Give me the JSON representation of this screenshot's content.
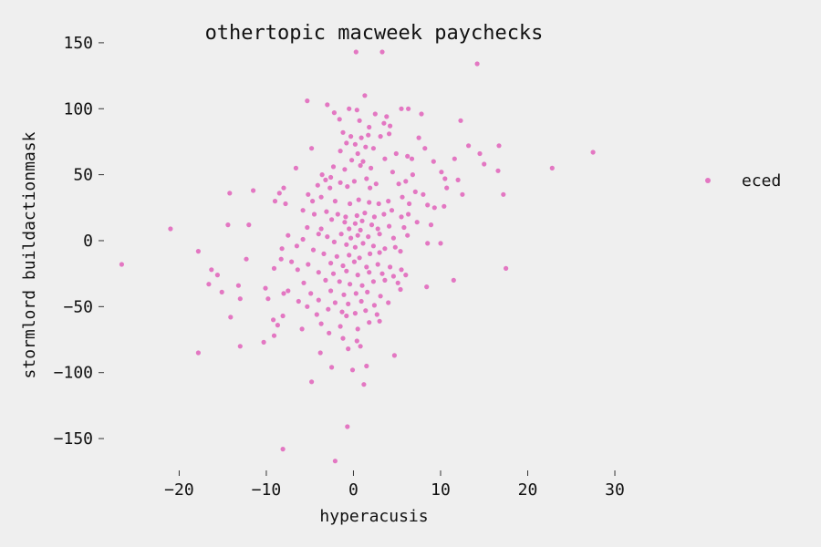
{
  "chart_data": {
    "type": "scatter",
    "title": "othertopic macweek paychecks",
    "xlabel": "hyperacusis",
    "ylabel": "stormlord buildactionmask",
    "xlim": [
      -28,
      39
    ],
    "ylim": [
      -170,
      152
    ],
    "xticks": [
      -20,
      -10,
      0,
      10,
      20,
      30
    ],
    "yticks": [
      -150,
      -100,
      -50,
      0,
      50,
      100,
      150
    ],
    "xtick_labels": [
      "−20",
      "−10",
      "0",
      "10",
      "20",
      "30"
    ],
    "ytick_labels": [
      "−150",
      "−100",
      "−50",
      "0",
      "50",
      "100",
      "150"
    ],
    "grid": false,
    "legend_position": "right",
    "series": [
      {
        "name": "eced",
        "color": "#e377c2",
        "points": [
          [
            0.3,
            143
          ],
          [
            3.3,
            143
          ],
          [
            14.2,
            134
          ],
          [
            1.3,
            110
          ],
          [
            -5.3,
            106
          ],
          [
            -0.5,
            100
          ],
          [
            0.4,
            99
          ],
          [
            5.5,
            100
          ],
          [
            6.3,
            100
          ],
          [
            7.8,
            96
          ],
          [
            -3,
            103
          ],
          [
            -2.2,
            97
          ],
          [
            2.5,
            96
          ],
          [
            3.8,
            94
          ],
          [
            12.3,
            91
          ],
          [
            -1.6,
            92
          ],
          [
            0.7,
            91
          ],
          [
            3.5,
            89
          ],
          [
            4.2,
            87
          ],
          [
            1.8,
            86
          ],
          [
            -1.2,
            82
          ],
          [
            -0.3,
            79
          ],
          [
            0.9,
            78
          ],
          [
            1.7,
            80
          ],
          [
            3.1,
            79
          ],
          [
            4.1,
            81
          ],
          [
            -0.8,
            74
          ],
          [
            0.2,
            73
          ],
          [
            1.4,
            71
          ],
          [
            2.3,
            70
          ],
          [
            7.5,
            78
          ],
          [
            8.2,
            70
          ],
          [
            13.2,
            72
          ],
          [
            16.7,
            72
          ],
          [
            14.5,
            66
          ],
          [
            -4.8,
            70
          ],
          [
            6.2,
            64
          ],
          [
            6.7,
            62
          ],
          [
            -1.5,
            68
          ],
          [
            0.5,
            66
          ],
          [
            -0.2,
            61
          ],
          [
            1.1,
            60
          ],
          [
            3.6,
            62
          ],
          [
            4.9,
            66
          ],
          [
            11.6,
            62
          ],
          [
            15,
            58
          ],
          [
            22.8,
            55
          ],
          [
            27.5,
            67
          ],
          [
            9.2,
            60
          ],
          [
            -2.3,
            56
          ],
          [
            -1,
            54
          ],
          [
            0.8,
            57
          ],
          [
            2,
            55
          ],
          [
            -6.6,
            55
          ],
          [
            -3.6,
            50
          ],
          [
            10.1,
            52
          ],
          [
            10.5,
            47
          ],
          [
            12,
            46
          ],
          [
            16.6,
            53
          ],
          [
            6.8,
            50
          ],
          [
            4.5,
            52
          ],
          [
            -3.2,
            46
          ],
          [
            -2.6,
            48
          ],
          [
            -1.5,
            44
          ],
          [
            0.1,
            45
          ],
          [
            1.5,
            47
          ],
          [
            2.6,
            43
          ],
          [
            -4.1,
            42
          ],
          [
            -2.7,
            40
          ],
          [
            -0.7,
            41
          ],
          [
            1.9,
            40
          ],
          [
            -8,
            40
          ],
          [
            -11.5,
            38
          ],
          [
            -14.2,
            36
          ],
          [
            -8.5,
            36
          ],
          [
            7.1,
            37
          ],
          [
            8,
            35
          ],
          [
            12.5,
            35
          ],
          [
            17.2,
            35
          ],
          [
            10.7,
            40
          ],
          [
            6,
            45
          ],
          [
            5.2,
            43
          ],
          [
            -5.2,
            35
          ],
          [
            -4.7,
            30
          ],
          [
            -3.7,
            33
          ],
          [
            -2.1,
            30
          ],
          [
            -0.4,
            28
          ],
          [
            0.6,
            31
          ],
          [
            1.8,
            29
          ],
          [
            2.9,
            28
          ],
          [
            4,
            30
          ],
          [
            5.6,
            33
          ],
          [
            6.4,
            28
          ],
          [
            8.5,
            27
          ],
          [
            9.3,
            25
          ],
          [
            10.4,
            26
          ],
          [
            -7.8,
            28
          ],
          [
            -9,
            30
          ],
          [
            -5.8,
            23
          ],
          [
            -4.5,
            20
          ],
          [
            -3.1,
            22
          ],
          [
            -1.8,
            20
          ],
          [
            -0.9,
            18
          ],
          [
            0.4,
            19
          ],
          [
            1.3,
            21
          ],
          [
            2.4,
            18
          ],
          [
            3.5,
            20
          ],
          [
            4.4,
            23
          ],
          [
            5.5,
            18
          ],
          [
            6.3,
            20
          ],
          [
            -2.5,
            16
          ],
          [
            -1,
            14
          ],
          [
            0.2,
            13
          ],
          [
            1,
            15
          ],
          [
            2.1,
            12
          ],
          [
            -12,
            12
          ],
          [
            -14.4,
            12
          ],
          [
            -21,
            9
          ],
          [
            -5.3,
            10
          ],
          [
            -3.7,
            9
          ],
          [
            -0.5,
            9
          ],
          [
            0.8,
            8
          ],
          [
            2.8,
            9
          ],
          [
            4.1,
            11
          ],
          [
            5.8,
            10
          ],
          [
            7.3,
            14
          ],
          [
            8.9,
            12
          ],
          [
            -4,
            5
          ],
          [
            -3,
            3
          ],
          [
            -1.4,
            5
          ],
          [
            -0.3,
            2
          ],
          [
            0.5,
            4
          ],
          [
            1.7,
            3
          ],
          [
            3,
            5
          ],
          [
            4.6,
            2
          ],
          [
            6.2,
            4
          ],
          [
            -7.5,
            4
          ],
          [
            -5.8,
            1
          ],
          [
            10,
            -2
          ],
          [
            8.5,
            -2
          ],
          [
            -2.2,
            -1
          ],
          [
            -0.8,
            -3
          ],
          [
            0.2,
            -5
          ],
          [
            1.1,
            -2
          ],
          [
            2.3,
            -4
          ],
          [
            3.6,
            -6
          ],
          [
            -6.5,
            -4
          ],
          [
            -4.6,
            -7
          ],
          [
            -8.2,
            -6
          ],
          [
            -17.8,
            -8
          ],
          [
            4.8,
            -5
          ],
          [
            5.4,
            -8
          ],
          [
            -3.4,
            -10
          ],
          [
            -1.9,
            -12
          ],
          [
            -0.5,
            -11
          ],
          [
            0.7,
            -13
          ],
          [
            1.9,
            -10
          ],
          [
            3,
            -9
          ],
          [
            -26.6,
            -18
          ],
          [
            -8.3,
            -14
          ],
          [
            -7.1,
            -16
          ],
          [
            -12.3,
            -14
          ],
          [
            -5.2,
            -18
          ],
          [
            -2.6,
            -17
          ],
          [
            -1.2,
            -19
          ],
          [
            0.1,
            -16
          ],
          [
            1.5,
            -20
          ],
          [
            2.8,
            -18
          ],
          [
            4.2,
            -20
          ],
          [
            5.5,
            -22
          ],
          [
            17.5,
            -21
          ],
          [
            -16.3,
            -22
          ],
          [
            -15.6,
            -26
          ],
          [
            -9.1,
            -21
          ],
          [
            -6.4,
            -22
          ],
          [
            -4,
            -24
          ],
          [
            -2.3,
            -25
          ],
          [
            -0.8,
            -23
          ],
          [
            0.5,
            -26
          ],
          [
            1.8,
            -24
          ],
          [
            3.3,
            -25
          ],
          [
            4.6,
            -27
          ],
          [
            6,
            -26
          ],
          [
            -16.6,
            -33
          ],
          [
            -15.1,
            -39
          ],
          [
            -13.2,
            -34
          ],
          [
            -5.7,
            -32
          ],
          [
            -3.2,
            -30
          ],
          [
            -1.6,
            -31
          ],
          [
            -0.4,
            -33
          ],
          [
            1,
            -34
          ],
          [
            2.3,
            -31
          ],
          [
            3.6,
            -30
          ],
          [
            5.1,
            -32
          ],
          [
            11.5,
            -30
          ],
          [
            -10.1,
            -36
          ],
          [
            -7.5,
            -38
          ],
          [
            -8,
            -40
          ],
          [
            -4.9,
            -40
          ],
          [
            -2.6,
            -38
          ],
          [
            -1.1,
            -41
          ],
          [
            0.3,
            -40
          ],
          [
            1.6,
            -39
          ],
          [
            3.1,
            -42
          ],
          [
            5.4,
            -37
          ],
          [
            8.4,
            -35
          ],
          [
            -13,
            -44
          ],
          [
            -9.8,
            -44
          ],
          [
            -6.3,
            -46
          ],
          [
            -4,
            -45
          ],
          [
            -2.1,
            -47
          ],
          [
            -0.6,
            -48
          ],
          [
            0.9,
            -46
          ],
          [
            2.4,
            -49
          ],
          [
            4,
            -47
          ],
          [
            -5.3,
            -50
          ],
          [
            -2.9,
            -52
          ],
          [
            -1.3,
            -54
          ],
          [
            0.2,
            -55
          ],
          [
            1.4,
            -53
          ],
          [
            2.7,
            -56
          ],
          [
            -14.1,
            -58
          ],
          [
            -9.2,
            -60
          ],
          [
            -8.1,
            -57
          ],
          [
            -4.2,
            -56
          ],
          [
            -0.8,
            -57
          ],
          [
            3,
            -61
          ],
          [
            -8.7,
            -64
          ],
          [
            -3.7,
            -63
          ],
          [
            -1.5,
            -65
          ],
          [
            0.5,
            -67
          ],
          [
            1.8,
            -62
          ],
          [
            -5.9,
            -67
          ],
          [
            -2.8,
            -70
          ],
          [
            -10.3,
            -77
          ],
          [
            -9.1,
            -72
          ],
          [
            -13,
            -80
          ],
          [
            -1.2,
            -74
          ],
          [
            0.4,
            -76
          ],
          [
            -17.8,
            -85
          ],
          [
            -3.8,
            -85
          ],
          [
            -0.6,
            -82
          ],
          [
            0.8,
            -80
          ],
          [
            4.7,
            -87
          ],
          [
            -2.5,
            -96
          ],
          [
            -0.1,
            -98
          ],
          [
            1.5,
            -95
          ],
          [
            -4.8,
            -107
          ],
          [
            1.2,
            -109
          ],
          [
            -0.7,
            -141
          ],
          [
            -8.1,
            -158
          ],
          [
            -2.1,
            -167
          ]
        ]
      }
    ]
  }
}
